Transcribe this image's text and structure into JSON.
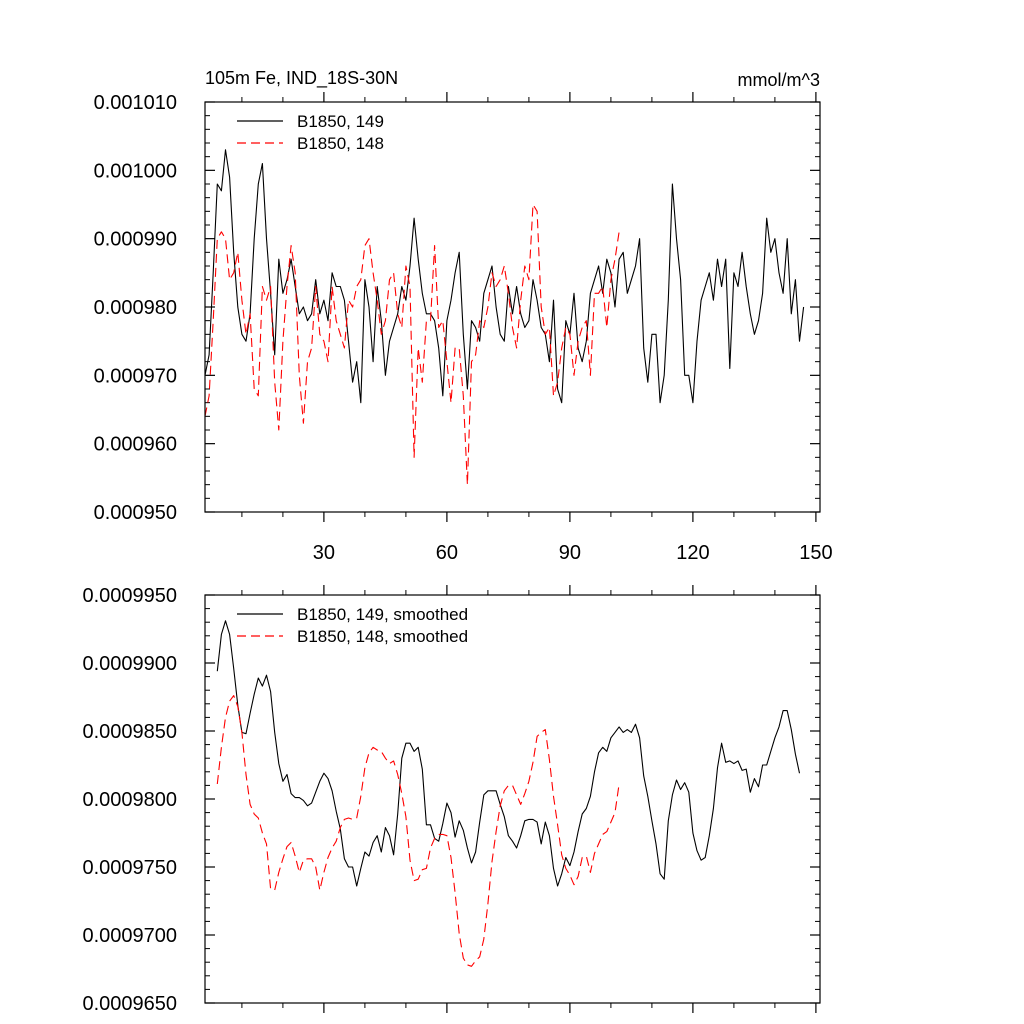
{
  "chart_data": [
    {
      "type": "line",
      "title": "105m Fe, IND_18S-30N",
      "units": "mmol/m^3",
      "xlim": [
        1,
        151
      ],
      "ylim": [
        0.00095,
        0.00101
      ],
      "xticks": [
        30,
        60,
        90,
        120,
        150
      ],
      "yticks": [
        0.00095,
        0.00096,
        0.00097,
        0.00098,
        0.00099,
        0.001,
        0.00101
      ],
      "ytick_labels": [
        "0.000950",
        "0.000960",
        "0.000970",
        "0.000980",
        "0.000990",
        "0.001000",
        "0.001010"
      ],
      "legend_position": "top-left",
      "series": [
        {
          "name": "B1850, 149",
          "color": "#000000",
          "dash": "solid",
          "x_start": 1,
          "values": [
            0.00097,
            0.000973,
            0.000985,
            0.000998,
            0.000997,
            0.001003,
            0.000999,
            0.000988,
            0.00098,
            0.000976,
            0.000975,
            0.000979,
            0.00099,
            0.000998,
            0.001001,
            0.00099,
            0.000982,
            0.000973,
            0.000987,
            0.000982,
            0.000984,
            0.000987,
            0.000983,
            0.000979,
            0.00098,
            0.000978,
            0.000979,
            0.000984,
            0.000979,
            0.000981,
            0.000978,
            0.000985,
            0.000983,
            0.000983,
            0.000981,
            0.000975,
            0.000969,
            0.000972,
            0.000966,
            0.000984,
            0.00098,
            0.000972,
            0.000983,
            0.000978,
            0.00097,
            0.000975,
            0.000977,
            0.000979,
            0.000983,
            0.000981,
            0.000986,
            0.000993,
            0.000987,
            0.000982,
            0.000979,
            0.000979,
            0.000978,
            0.000974,
            0.000967,
            0.000978,
            0.000981,
            0.000985,
            0.000988,
            0.000976,
            0.000968,
            0.000978,
            0.000977,
            0.000975,
            0.000982,
            0.000984,
            0.000986,
            0.00098,
            0.000976,
            0.000975,
            0.000983,
            0.000979,
            0.000983,
            0.000979,
            0.000977,
            0.000978,
            0.000984,
            0.000981,
            0.000977,
            0.000976,
            0.000972,
            0.000981,
            0.000968,
            0.000966,
            0.000978,
            0.000976,
            0.000982,
            0.000974,
            0.000972,
            0.000975,
            0.000982,
            0.000984,
            0.000986,
            0.000982,
            0.000987,
            0.000985,
            0.00098,
            0.000987,
            0.000988,
            0.000982,
            0.000984,
            0.000986,
            0.00099,
            0.000974,
            0.000969,
            0.000976,
            0.000976,
            0.000966,
            0.00097,
            0.000981,
            0.000998,
            0.00099,
            0.000984,
            0.00097,
            0.00097,
            0.000966,
            0.000975,
            0.000981,
            0.000983,
            0.000985,
            0.000981,
            0.000987,
            0.000983,
            0.000987,
            0.000971,
            0.000985,
            0.000983,
            0.000988,
            0.000983,
            0.000979,
            0.000976,
            0.000978,
            0.000982,
            0.000993,
            0.000988,
            0.00099,
            0.000985,
            0.000982,
            0.00099,
            0.000979,
            0.000984,
            0.000975,
            0.00098
          ]
        },
        {
          "name": "B1850, 148",
          "color": "#ff0000",
          "dash": "dashed",
          "x_start": 1,
          "values": [
            0.000964,
            0.000967,
            0.000978,
            0.00099,
            0.000991,
            0.00099,
            0.000984,
            0.000985,
            0.000988,
            0.000981,
            0.000976,
            0.000979,
            0.000968,
            0.000967,
            0.000983,
            0.000981,
            0.000983,
            0.000969,
            0.000962,
            0.000975,
            0.000983,
            0.000989,
            0.000985,
            0.00097,
            0.000963,
            0.000972,
            0.000974,
            0.000983,
            0.000976,
            0.000975,
            0.000972,
            0.000983,
            0.000978,
            0.000976,
            0.000974,
            0.000981,
            0.00098,
            0.000983,
            0.000984,
            0.000989,
            0.00099,
            0.000985,
            0.000981,
            0.000976,
            0.000978,
            0.000984,
            0.000985,
            0.000979,
            0.000977,
            0.000986,
            0.000983,
            0.000958,
            0.000974,
            0.000969,
            0.000978,
            0.000978,
            0.000989,
            0.000977,
            0.000978,
            0.000972,
            0.000966,
            0.000974,
            0.000974,
            0.000967,
            0.000954,
            0.000972,
            0.000973,
            0.000978,
            0.000977,
            0.00098,
            0.000985,
            0.000983,
            0.000984,
            0.000986,
            0.000982,
            0.000977,
            0.000974,
            0.000981,
            0.000986,
            0.000984,
            0.000995,
            0.000994,
            0.00098,
            0.000976,
            0.000977,
            0.000967,
            0.000969,
            0.000974,
            0.000977,
            0.000976,
            0.00097,
            0.000975,
            0.000977,
            0.000978,
            0.00097,
            0.000982,
            0.000982,
            0.000983,
            0.000977,
            0.000984,
            0.000987,
            0.000991
          ]
        }
      ]
    },
    {
      "type": "line",
      "title": "",
      "units": "",
      "xlim": [
        1,
        151
      ],
      "ylim": [
        0.000965,
        0.000995
      ],
      "xticks": [
        30,
        60,
        90,
        120,
        150
      ],
      "yticks": [
        0.000965,
        0.00097,
        0.000975,
        0.00098,
        0.000985,
        0.00099,
        0.000995
      ],
      "ytick_labels": [
        "0.0009650",
        "0.0009700",
        "0.0009750",
        "0.0009800",
        "0.0009850",
        "0.0009900",
        "0.0009950"
      ],
      "legend_position": "top-left",
      "series": [
        {
          "name": "B1850, 149, smoothed",
          "color": "#000000",
          "dash": "solid",
          "x_start": 4,
          "values": [
            0.0009894,
            0.0009921,
            0.0009931,
            0.0009921,
            0.0009896,
            0.0009869,
            0.0009849,
            0.0009848,
            0.0009863,
            0.0009877,
            0.0009889,
            0.0009883,
            0.0009891,
            0.0009879,
            0.0009849,
            0.0009826,
            0.0009813,
            0.0009818,
            0.0009804,
            0.0009801,
            0.0009801,
            0.0009799,
            0.0009795,
            0.0009797,
            0.0009805,
            0.0009813,
            0.0009819,
            0.0009815,
            0.0009806,
            0.0009791,
            0.0009778,
            0.0009756,
            0.000975,
            0.000975,
            0.0009736,
            0.0009749,
            0.0009761,
            0.0009758,
            0.0009768,
            0.0009773,
            0.0009761,
            0.0009779,
            0.0009773,
            0.0009759,
            0.0009789,
            0.000983,
            0.0009841,
            0.0009841,
            0.0009835,
            0.0009838,
            0.0009822,
            0.0009781,
            0.0009781,
            0.0009771,
            0.0009769,
            0.0009782,
            0.0009797,
            0.000979,
            0.0009772,
            0.0009784,
            0.0009777,
            0.0009764,
            0.0009753,
            0.0009761,
            0.0009783,
            0.0009803,
            0.0009806,
            0.0009806,
            0.0009806,
            0.0009796,
            0.0009787,
            0.0009773,
            0.0009769,
            0.0009764,
            0.0009773,
            0.0009784,
            0.0009785,
            0.0009785,
            0.0009783,
            0.0009767,
            0.0009783,
            0.0009773,
            0.0009749,
            0.0009736,
            0.0009745,
            0.0009757,
            0.0009751,
            0.0009761,
            0.0009776,
            0.0009789,
            0.0009793,
            0.0009802,
            0.000982,
            0.0009834,
            0.0009838,
            0.0009835,
            0.0009845,
            0.0009849,
            0.0009853,
            0.0009849,
            0.0009851,
            0.0009849,
            0.0009855,
            0.0009845,
            0.0009817,
            0.0009802,
            0.0009784,
            0.0009767,
            0.0009745,
            0.0009741,
            0.0009784,
            0.0009803,
            0.0009814,
            0.0009807,
            0.0009812,
            0.0009805,
            0.0009775,
            0.0009762,
            0.0009755,
            0.0009757,
            0.0009773,
            0.0009793,
            0.0009823,
            0.0009841,
            0.0009827,
            0.0009828,
            0.0009826,
            0.0009828,
            0.0009821,
            0.0009822,
            0.0009805,
            0.0009815,
            0.0009809,
            0.0009825,
            0.0009825,
            0.0009835,
            0.0009845,
            0.0009853,
            0.0009865,
            0.0009865,
            0.0009851,
            0.0009833,
            0.0009819
          ]
        },
        {
          "name": "B1850, 148, smoothed",
          "color": "#ff0000",
          "dash": "dashed",
          "x_start": 4,
          "values": [
            0.0009811,
            0.0009838,
            0.000986,
            0.0009872,
            0.0009876,
            0.0009868,
            0.0009849,
            0.0009818,
            0.0009796,
            0.0009789,
            0.0009786,
            0.0009775,
            0.0009767,
            0.0009734,
            0.0009733,
            0.0009746,
            0.0009756,
            0.0009765,
            0.0009768,
            0.0009758,
            0.0009746,
            0.0009755,
            0.0009756,
            0.0009756,
            0.000975,
            0.0009733,
            0.0009746,
            0.0009757,
            0.0009764,
            0.0009769,
            0.0009779,
            0.0009785,
            0.0009786,
            0.0009785,
            0.0009786,
            0.0009802,
            0.0009823,
            0.0009834,
            0.0009838,
            0.0009836,
            0.0009835,
            0.000983,
            0.0009826,
            0.0009828,
            0.0009818,
            0.0009804,
            0.0009787,
            0.0009755,
            0.000974,
            0.0009741,
            0.0009748,
            0.0009749,
            0.0009764,
            0.0009771,
            0.0009774,
            0.0009774,
            0.0009773,
            0.0009757,
            0.0009731,
            0.0009701,
            0.0009683,
            0.0009678,
            0.0009677,
            0.0009681,
            0.0009684,
            0.0009697,
            0.0009723,
            0.0009754,
            0.0009776,
            0.0009795,
            0.0009806,
            0.000981,
            0.000981,
            0.0009803,
            0.0009796,
            0.0009804,
            0.0009813,
            0.0009827,
            0.0009846,
            0.0009849,
            0.0009851,
            0.0009829,
            0.0009802,
            0.0009781,
            0.0009759,
            0.0009749,
            0.0009744,
            0.0009737,
            0.0009743,
            0.0009757,
            0.0009758,
            0.0009746,
            0.000976,
            0.0009767,
            0.0009774,
            0.0009776,
            0.0009783,
            0.000979,
            0.0009811
          ]
        }
      ]
    }
  ]
}
